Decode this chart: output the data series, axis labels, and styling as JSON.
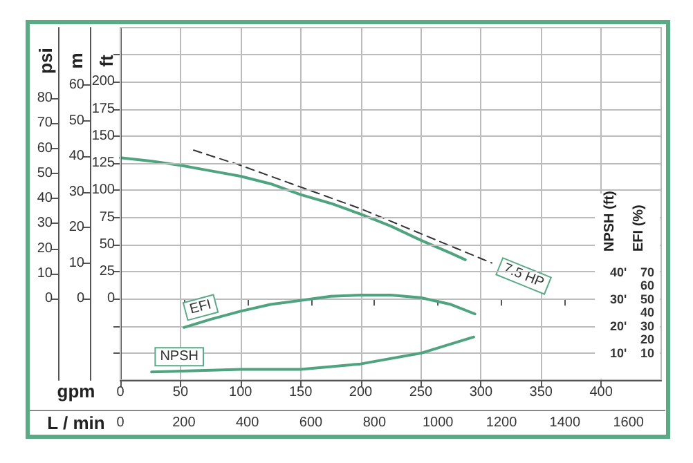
{
  "chart_data": [
    {
      "type": "line",
      "xlabel": "gpm",
      "x2label": "L / min",
      "ylabel": "ft",
      "y2label": "psi",
      "y3label": "m",
      "xlim": [
        0,
        450
      ],
      "xticks": [
        0,
        50,
        100,
        150,
        200,
        250,
        300,
        350,
        400
      ],
      "x2lim": [
        0,
        1703
      ],
      "x2ticks": [
        0,
        200,
        400,
        600,
        800,
        1000,
        1200,
        1400,
        1600
      ],
      "ylim": [
        -75,
        250
      ],
      "yticks": [
        {
          "value": -50,
          "label": null
        },
        {
          "value": -25,
          "label": null
        },
        0,
        25,
        50,
        75,
        100,
        125,
        150,
        175,
        200,
        {
          "value": 225,
          "label": null
        }
      ],
      "y2lim": [
        -32.5,
        108.2
      ],
      "y2ticks": [
        0,
        10,
        20,
        30,
        40,
        50,
        60,
        70,
        80
      ],
      "y3lim": [
        -22.9,
        76.2
      ],
      "y3ticks": [
        0,
        10,
        20,
        30,
        40,
        50,
        60
      ],
      "grid": true,
      "series": [
        {
          "color": "#4fa37f",
          "x": [
            0,
            25,
            50,
            75,
            100,
            125,
            150,
            175,
            200,
            225,
            250,
            275,
            287
          ],
          "values": [
            130,
            127,
            123,
            118,
            113,
            106,
            96,
            88,
            78,
            67,
            54,
            42,
            36
          ]
        },
        {
          "name": "7.5 HP",
          "type": "line",
          "line_style": "dashed",
          "color": "#333333",
          "x": [
            61,
            100,
            150,
            200,
            250,
            309
          ],
          "values": [
            137,
            123,
            103,
            83,
            60,
            33
          ]
        }
      ]
    },
    {
      "type": "line",
      "ylabel": "NPSH (ft)",
      "y2label": "EFI (%)",
      "tick_labels": "y",
      "xlim": [
        0,
        450
      ],
      "ylim": [
        0,
        131
      ],
      "yticks": [
        {
          "value": 10,
          "label": "10'"
        },
        {
          "value": 20,
          "label": "20'"
        },
        {
          "value": 30,
          "label": "30'"
        },
        {
          "value": 40,
          "label": "40'"
        }
      ],
      "y2lim": [
        -10,
        251
      ],
      "y2ticks": [
        10,
        20,
        30,
        40,
        50,
        60,
        70
      ],
      "series": [
        {
          "name": "EFI",
          "axis": "y2",
          "color": "#4fa37f",
          "x": [
            53,
            75,
            100,
            125,
            150,
            175,
            200,
            225,
            250,
            275,
            295
          ],
          "values": [
            29,
            35,
            41,
            46,
            49,
            52,
            53,
            53,
            51,
            46,
            39
          ]
        },
        {
          "name": "NPSH",
          "color": "#4fa37f",
          "x": [
            26,
            100,
            150,
            200,
            250,
            294
          ],
          "values": [
            3,
            4,
            4,
            6,
            10,
            16
          ]
        }
      ]
    }
  ]
}
